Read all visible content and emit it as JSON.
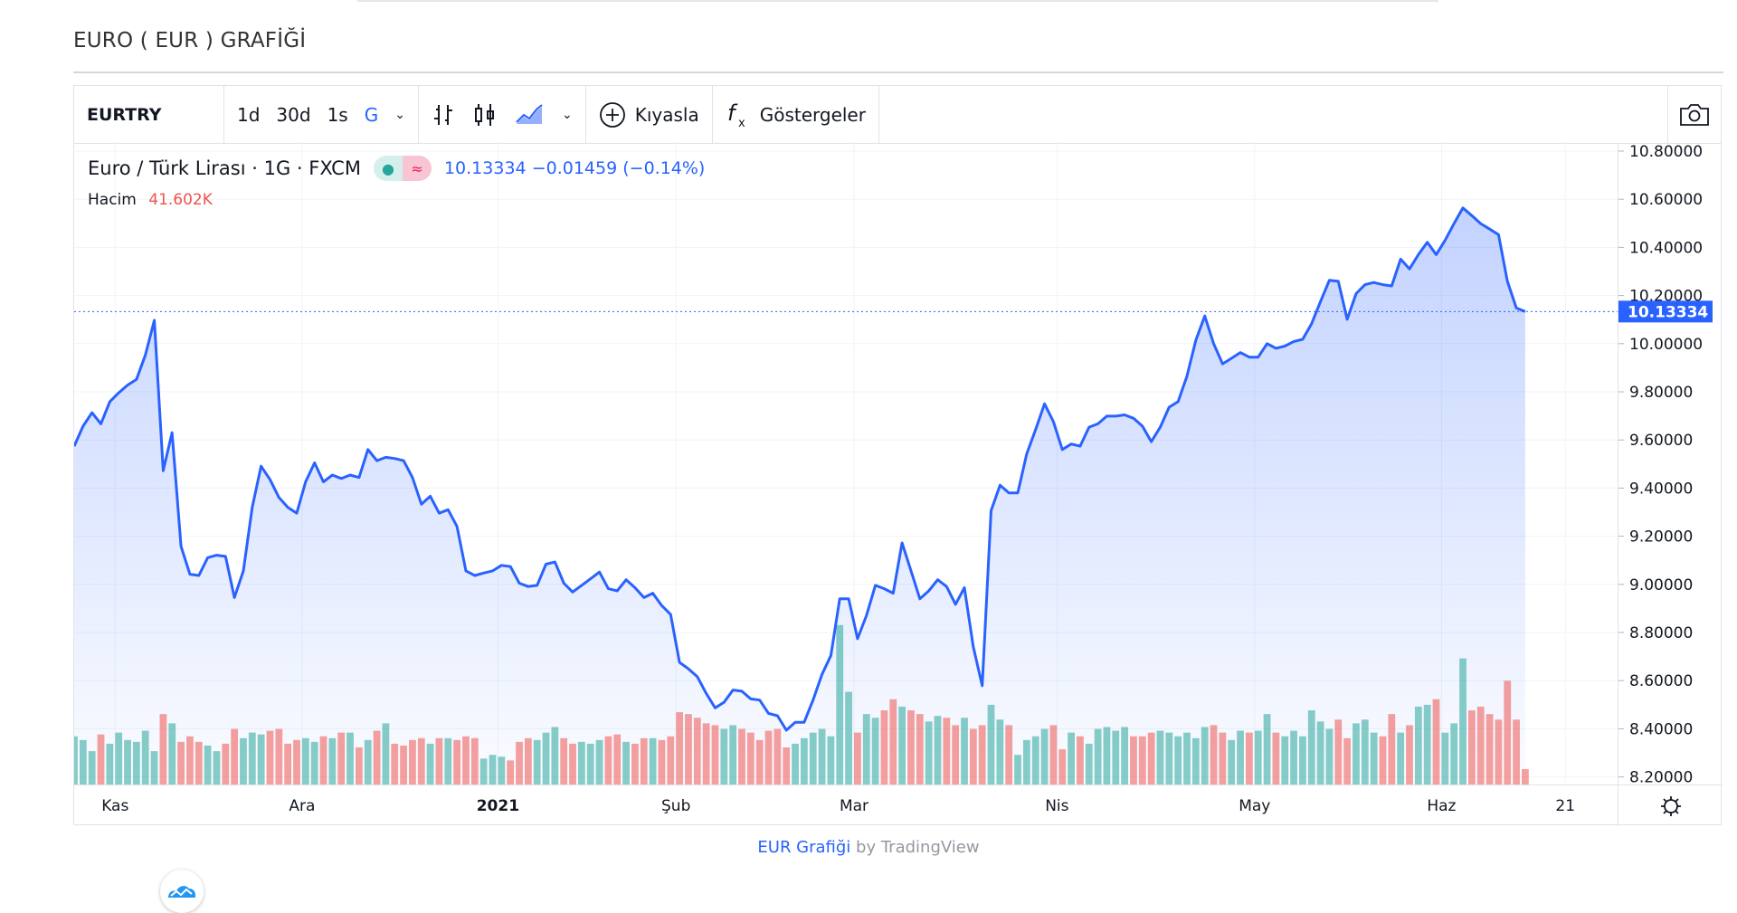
{
  "page": {
    "title": "EURO ( EUR ) GRAFİĞİ"
  },
  "toolbar": {
    "symbol": "EURTRY",
    "intervals": [
      "1d",
      "30d",
      "1s",
      "G"
    ],
    "active_interval": "G",
    "compare_label": "Kıyasla",
    "indicators_label": "Göstergeler",
    "icons": [
      "bar-chart-icon",
      "candlestick-icon",
      "area-chart-icon",
      "plus-circle-icon",
      "fx-icon",
      "camera-icon"
    ]
  },
  "legend": {
    "title": "Euro / Türk Lirası · 1G · FXCM",
    "price": "10.13334",
    "change": "−0.01459",
    "change_pct": "(−0.14%)",
    "volume_label": "Hacim",
    "volume_value": "41.602K"
  },
  "footer": {
    "link": "EUR Grafiği",
    "by": " by TradingView"
  },
  "colors": {
    "line": "#2962ff",
    "up": "#26a69a",
    "down": "#ef5350",
    "accent": "#2962ff"
  },
  "chart_data": {
    "type": "area",
    "symbol": "EURTRY",
    "ylim": [
      8.2,
      10.8
    ],
    "yticks": [
      "10.80000",
      "10.60000",
      "10.40000",
      "10.20000",
      "10.00000",
      "9.80000",
      "9.60000",
      "9.40000",
      "9.20000",
      "9.00000",
      "8.80000",
      "8.60000",
      "8.40000",
      "8.20000"
    ],
    "last_price_label": "10.13334",
    "last_price": 10.13334,
    "xticks": [
      {
        "label": "Kas",
        "index": 4.6
      },
      {
        "label": "Ara",
        "index": 25.6
      },
      {
        "label": "2021",
        "index": 47.6,
        "bold": true
      },
      {
        "label": "Şub",
        "index": 67.6
      },
      {
        "label": "Mar",
        "index": 87.6
      },
      {
        "label": "Nis",
        "index": 110.4
      },
      {
        "label": "May",
        "index": 132.6
      },
      {
        "label": "Haz",
        "index": 153.6
      },
      {
        "label": "21",
        "index": 167.5
      }
    ],
    "grid": true,
    "close": [
      9.574,
      9.657,
      9.713,
      9.667,
      9.759,
      9.796,
      9.828,
      9.852,
      9.953,
      10.097,
      9.472,
      9.63,
      9.158,
      9.042,
      9.037,
      9.111,
      9.121,
      9.116,
      8.945,
      9.056,
      9.32,
      9.491,
      9.435,
      9.361,
      9.32,
      9.296,
      9.426,
      9.505,
      9.426,
      9.454,
      9.44,
      9.454,
      9.444,
      9.56,
      9.514,
      9.528,
      9.523,
      9.514,
      9.444,
      9.333,
      9.366,
      9.296,
      9.31,
      9.241,
      9.056,
      9.037,
      9.047,
      9.056,
      9.079,
      9.074,
      9.005,
      8.991,
      8.996,
      9.084,
      9.093,
      9.005,
      8.968,
      8.996,
      9.023,
      9.051,
      8.982,
      8.973,
      9.019,
      8.986,
      8.945,
      8.963,
      8.912,
      8.875,
      8.676,
      8.649,
      8.616,
      8.547,
      8.487,
      8.51,
      8.561,
      8.556,
      8.524,
      8.519,
      8.464,
      8.454,
      8.394,
      8.427,
      8.427,
      8.519,
      8.626,
      8.704,
      8.94,
      8.94,
      8.774,
      8.871,
      8.996,
      8.982,
      8.963,
      9.172,
      9.056,
      8.94,
      8.973,
      9.019,
      8.991,
      8.917,
      8.986,
      8.741,
      8.579,
      9.306,
      9.412,
      9.38,
      9.38,
      9.542,
      9.643,
      9.75,
      9.676,
      9.56,
      9.583,
      9.574,
      9.653,
      9.667,
      9.699,
      9.699,
      9.704,
      9.69,
      9.657,
      9.593,
      9.653,
      9.736,
      9.759,
      9.865,
      10.014,
      10.115,
      10.0,
      9.916,
      9.939,
      9.963,
      9.944,
      9.944,
      10.0,
      9.981,
      9.99,
      10.009,
      10.018,
      10.083,
      10.175,
      10.263,
      10.259,
      10.101,
      10.208,
      10.245,
      10.254,
      10.245,
      10.24,
      10.351,
      10.31,
      10.37,
      10.421,
      10.37,
      10.43,
      10.499,
      10.564,
      10.532,
      10.499,
      10.476,
      10.453,
      10.259,
      10.148,
      10.13334
    ],
    "volume_k": [
      130,
      120,
      90,
      135,
      110,
      140,
      120,
      115,
      145,
      90,
      190,
      165,
      115,
      130,
      115,
      105,
      90,
      110,
      150,
      125,
      140,
      135,
      145,
      150,
      110,
      120,
      125,
      115,
      130,
      125,
      140,
      140,
      100,
      120,
      145,
      165,
      110,
      105,
      120,
      125,
      110,
      125,
      125,
      120,
      130,
      125,
      70,
      80,
      75,
      65,
      115,
      125,
      120,
      140,
      155,
      125,
      110,
      115,
      110,
      120,
      130,
      135,
      115,
      110,
      125,
      125,
      120,
      130,
      195,
      190,
      180,
      165,
      160,
      150,
      160,
      150,
      140,
      120,
      145,
      150,
      100,
      110,
      125,
      140,
      150,
      130,
      430,
      250,
      140,
      190,
      180,
      200,
      230,
      210,
      200,
      190,
      170,
      185,
      180,
      160,
      180,
      150,
      160,
      215,
      175,
      160,
      80,
      120,
      130,
      150,
      160,
      95,
      140,
      130,
      110,
      150,
      155,
      145,
      155,
      130,
      130,
      140,
      145,
      140,
      130,
      140,
      125,
      155,
      160,
      140,
      120,
      145,
      140,
      145,
      190,
      140,
      130,
      145,
      130,
      200,
      170,
      150,
      175,
      125,
      165,
      175,
      140,
      130,
      190,
      140,
      160,
      210,
      215,
      230,
      140,
      165,
      340,
      200,
      210,
      190,
      175,
      280,
      175,
      41.602
    ]
  }
}
